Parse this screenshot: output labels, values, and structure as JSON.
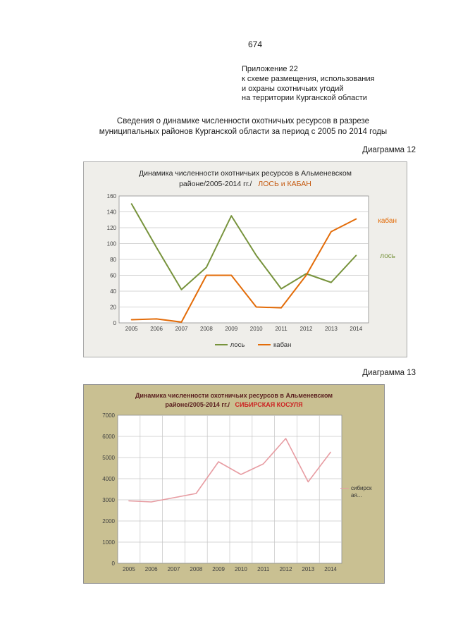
{
  "page": {
    "number": "674",
    "appendix_lines": [
      "Приложение 22",
      "к схеме размещения, использования",
      "и охраны охотничьих угодий",
      "на территории Курганской области"
    ],
    "intro_lines": [
      "Сведения о динамике численности охотничьих ресурсов в разрезе",
      "муниципальных районов Курганской области за период с 2005 по 2014 годы"
    ],
    "diagram12_label": "Диаграмма 12",
    "diagram13_label": "Диаграмма 13"
  },
  "chart_data": [
    {
      "type": "line",
      "title_line1": "Динамика численности охотничьих ресурсов в Альменевском",
      "title_line2_prefix": "районе/2005-2014 гг./",
      "title_line2_highlight": "ЛОСЬ и КАБАН",
      "highlight_color": "#C55A11",
      "categories": [
        "2005",
        "2006",
        "2007",
        "2008",
        "2009",
        "2010",
        "2011",
        "2012",
        "2013",
        "2014"
      ],
      "series": [
        {
          "name": "лось",
          "color": "#77933C",
          "values": [
            150,
            95,
            42,
            70,
            135,
            85,
            43,
            62,
            51,
            85
          ]
        },
        {
          "name": "кабан",
          "color": "#E36C09",
          "values": [
            4,
            5,
            1,
            60,
            60,
            20,
            19,
            60,
            115,
            131
          ]
        }
      ],
      "ylim": [
        0,
        160
      ],
      "ytick_step": 20,
      "grid": {
        "horizontal": true,
        "vertical": false
      },
      "legend_position": "bottom",
      "side_labels": [
        {
          "text": "кабан",
          "color": "#E36C09"
        },
        {
          "text": "лось",
          "color": "#77933C"
        }
      ]
    },
    {
      "type": "line",
      "title_line1": "Динамика численности охотничьих ресурсов в Альменевском",
      "title_line2_prefix": "районе/2005-2014 гг./",
      "title_line2_highlight": "СИБИРСКАЯ КОСУЛЯ",
      "highlight_color": "#CC2222",
      "categories": [
        "2005",
        "2006",
        "2007",
        "2008",
        "2009",
        "2010",
        "2011",
        "2012",
        "2013",
        "2014"
      ],
      "series": [
        {
          "name": "сибирск ая...",
          "color": "#E79CA2",
          "values": [
            2950,
            2900,
            3100,
            3300,
            4800,
            4200,
            4700,
            5900,
            3850,
            5250
          ]
        }
      ],
      "ylim": [
        0,
        7000
      ],
      "ytick_step": 1000,
      "grid": {
        "horizontal": true,
        "vertical": true
      },
      "legend_position": "right"
    }
  ]
}
